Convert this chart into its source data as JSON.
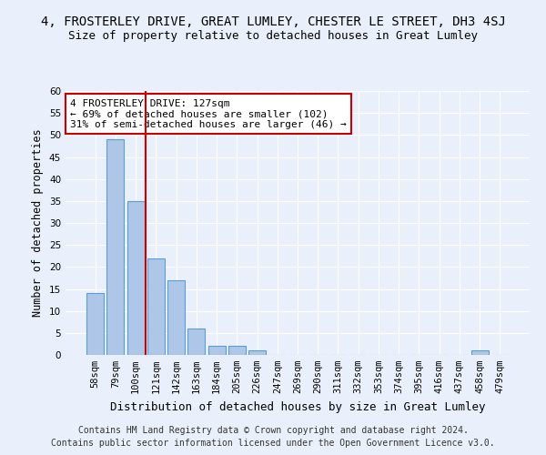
{
  "title1": "4, FROSTERLEY DRIVE, GREAT LUMLEY, CHESTER LE STREET, DH3 4SJ",
  "title2": "Size of property relative to detached houses in Great Lumley",
  "xlabel": "Distribution of detached houses by size in Great Lumley",
  "ylabel": "Number of detached properties",
  "bins": [
    "58sqm",
    "79sqm",
    "100sqm",
    "121sqm",
    "142sqm",
    "163sqm",
    "184sqm",
    "205sqm",
    "226sqm",
    "247sqm",
    "269sqm",
    "290sqm",
    "311sqm",
    "332sqm",
    "353sqm",
    "374sqm",
    "395sqm",
    "416sqm",
    "437sqm",
    "458sqm",
    "479sqm"
  ],
  "values": [
    14,
    49,
    35,
    22,
    17,
    6,
    2,
    2,
    1,
    0,
    0,
    0,
    0,
    0,
    0,
    0,
    0,
    0,
    0,
    1,
    0
  ],
  "bar_color": "#aec6e8",
  "bar_edge_color": "#5a9fd4",
  "vline_pos": 2.5,
  "vline_color": "#cc0000",
  "annotation_text": "4 FROSTERLEY DRIVE: 127sqm\n← 69% of detached houses are smaller (102)\n31% of semi-detached houses are larger (46) →",
  "annotation_box_color": "#ffffff",
  "annotation_box_edge": "#cc0000",
  "ylim": [
    0,
    60
  ],
  "yticks": [
    0,
    5,
    10,
    15,
    20,
    25,
    30,
    35,
    40,
    45,
    50,
    55,
    60
  ],
  "footer1": "Contains HM Land Registry data © Crown copyright and database right 2024.",
  "footer2": "Contains public sector information licensed under the Open Government Licence v3.0.",
  "bg_color": "#eaf0fb",
  "grid_color": "#ffffff",
  "title1_fontsize": 10,
  "title2_fontsize": 9,
  "xlabel_fontsize": 9,
  "ylabel_fontsize": 8.5,
  "tick_fontsize": 7.5,
  "annotation_fontsize": 8,
  "footer_fontsize": 7
}
